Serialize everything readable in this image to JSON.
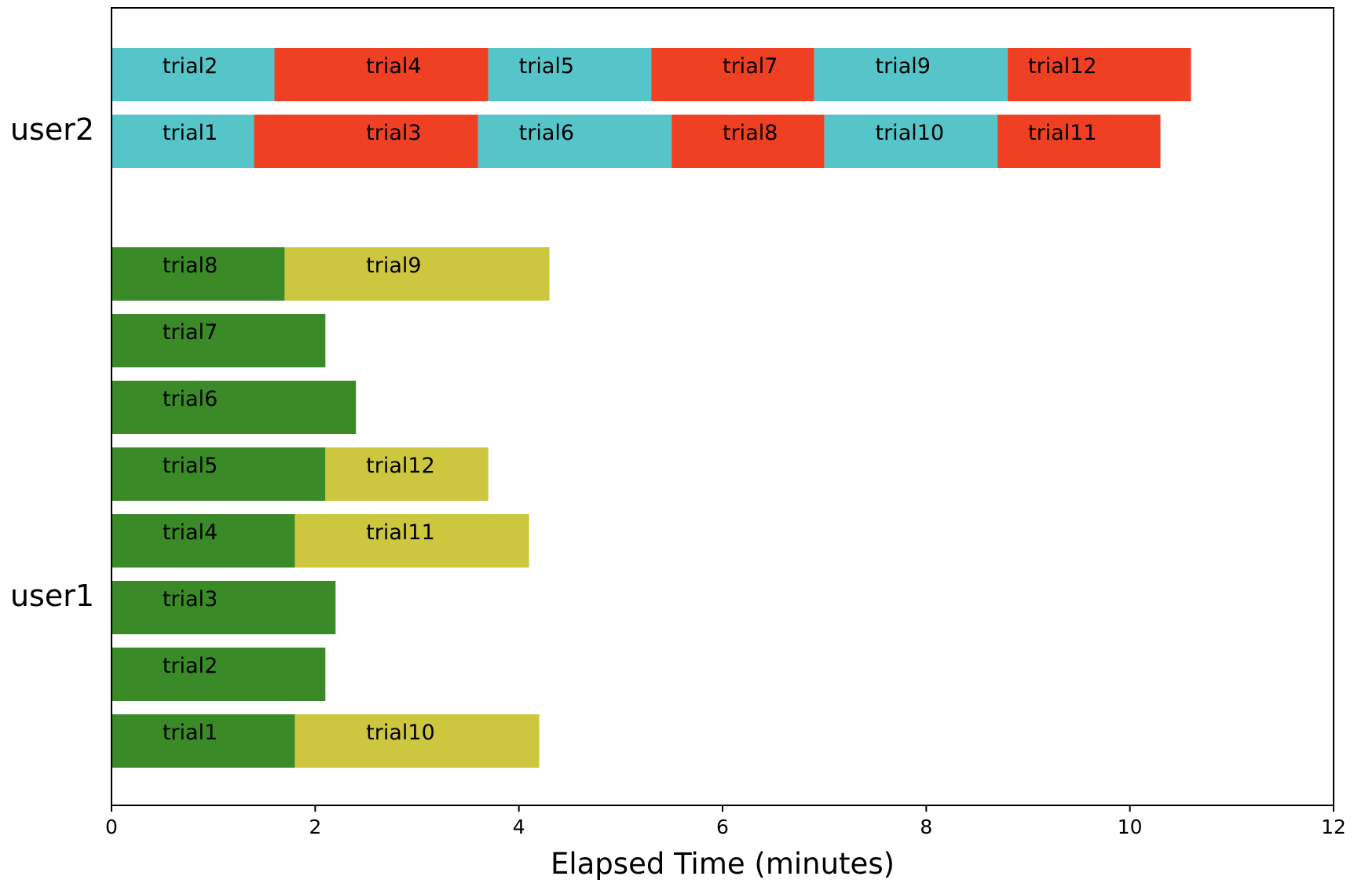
{
  "chart_data": {
    "type": "bar",
    "orientation": "horizontal-stacked-gantt",
    "xlabel": "Elapsed Time (minutes)",
    "xlim": [
      0,
      12
    ],
    "xticks": [
      0,
      2,
      4,
      6,
      8,
      10,
      12
    ],
    "grid": false,
    "legend": "none",
    "categories": [
      "user1",
      "user2"
    ],
    "colors": {
      "user1_first": "#3a8a27",
      "user1_second": "#cdc63f",
      "user2_cyan": "#55c5c9",
      "user2_red": "#ef4024"
    },
    "lanes": [
      {
        "user": "user1",
        "segments": [
          {
            "label": "trial1",
            "start": 0,
            "end": 1.8,
            "color": "#3a8a27"
          },
          {
            "label": "trial10",
            "start": 1.8,
            "end": 4.2,
            "color": "#cdc63f"
          }
        ]
      },
      {
        "user": "user1",
        "segments": [
          {
            "label": "trial2",
            "start": 0,
            "end": 2.1,
            "color": "#3a8a27"
          }
        ]
      },
      {
        "user": "user1",
        "segments": [
          {
            "label": "trial3",
            "start": 0,
            "end": 2.2,
            "color": "#3a8a27"
          }
        ]
      },
      {
        "user": "user1",
        "segments": [
          {
            "label": "trial4",
            "start": 0,
            "end": 1.8,
            "color": "#3a8a27"
          },
          {
            "label": "trial11",
            "start": 1.8,
            "end": 4.1,
            "color": "#cdc63f"
          }
        ]
      },
      {
        "user": "user1",
        "segments": [
          {
            "label": "trial5",
            "start": 0,
            "end": 2.1,
            "color": "#3a8a27"
          },
          {
            "label": "trial12",
            "start": 2.1,
            "end": 3.7,
            "color": "#cdc63f"
          }
        ]
      },
      {
        "user": "user1",
        "segments": [
          {
            "label": "trial6",
            "start": 0,
            "end": 2.4,
            "color": "#3a8a27"
          }
        ]
      },
      {
        "user": "user1",
        "segments": [
          {
            "label": "trial7",
            "start": 0,
            "end": 2.1,
            "color": "#3a8a27"
          }
        ]
      },
      {
        "user": "user1",
        "segments": [
          {
            "label": "trial8",
            "start": 0,
            "end": 1.7,
            "color": "#3a8a27"
          },
          {
            "label": "trial9",
            "start": 1.7,
            "end": 4.3,
            "color": "#cdc63f"
          }
        ]
      },
      {
        "user": "user2",
        "segments": [
          {
            "label": "trial1",
            "start": 0,
            "end": 1.4,
            "color": "#55c5c9"
          },
          {
            "label": "trial3",
            "start": 1.4,
            "end": 3.6,
            "color": "#ef4024"
          },
          {
            "label": "trial6",
            "start": 3.6,
            "end": 5.5,
            "color": "#55c5c9"
          },
          {
            "label": "trial8",
            "start": 5.5,
            "end": 7.0,
            "color": "#ef4024"
          },
          {
            "label": "trial10",
            "start": 7.0,
            "end": 8.7,
            "color": "#55c5c9"
          },
          {
            "label": "trial11",
            "start": 8.7,
            "end": 10.3,
            "color": "#ef4024"
          }
        ]
      },
      {
        "user": "user2",
        "segments": [
          {
            "label": "trial2",
            "start": 0,
            "end": 1.6,
            "color": "#55c5c9"
          },
          {
            "label": "trial4",
            "start": 1.6,
            "end": 3.7,
            "color": "#ef4024"
          },
          {
            "label": "trial5",
            "start": 3.7,
            "end": 5.3,
            "color": "#55c5c9"
          },
          {
            "label": "trial7",
            "start": 5.3,
            "end": 6.9,
            "color": "#ef4024"
          },
          {
            "label": "trial9",
            "start": 6.9,
            "end": 8.8,
            "color": "#55c5c9"
          },
          {
            "label": "trial12",
            "start": 8.8,
            "end": 10.6,
            "color": "#ef4024"
          }
        ]
      }
    ]
  }
}
